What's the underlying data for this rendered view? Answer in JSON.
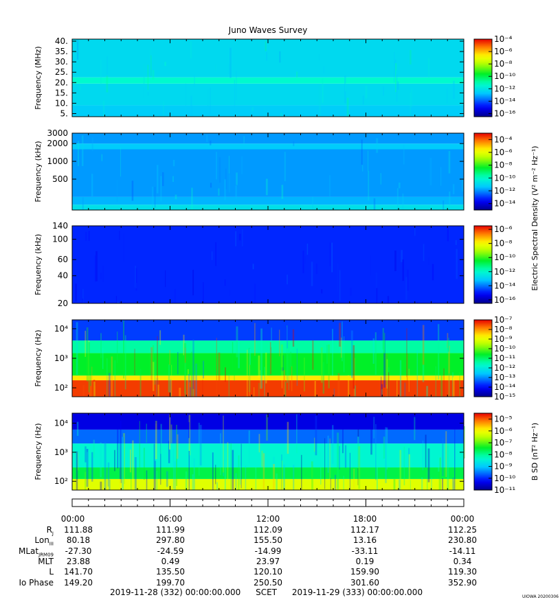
{
  "title": "Juno Waves Survey",
  "version": "UIOWA 20200306",
  "footer": {
    "start": "2019-11-28 (332) 00:00:00.000",
    "mid": "SCET",
    "end": "2019-11-29 (333) 00:00:00.000"
  },
  "shared_colorbar_label": "Electric Spectral Density (V² m⁻² Hz⁻¹)",
  "chart_data": [
    {
      "type": "heatmap",
      "name_of_panel": "mhz",
      "ylabel": "Frequency (MHz)",
      "yscale": "linear",
      "ylim": [
        3.5,
        41
      ],
      "yticks": [
        "5.",
        "10.",
        "15.",
        "20.",
        "25.",
        "30.",
        "35.",
        "40."
      ],
      "ytick_values": [
        5,
        10,
        15,
        20,
        25,
        30,
        35,
        40
      ],
      "colorbar_ticks": [
        "10⁻⁴",
        "10⁻⁶",
        "10⁻⁸",
        "10⁻¹⁰",
        "10⁻¹²",
        "10⁻¹⁴",
        "10⁻¹⁶"
      ],
      "colorbar_exponents": [
        -4,
        -6,
        -8,
        -10,
        -12,
        -14,
        -16
      ],
      "colorbar_range": [
        -16.5,
        -4
      ],
      "colorbar_label": "",
      "bands": [
        {
          "from": 3.5,
          "to": 9,
          "level": -12.6
        },
        {
          "from": 9,
          "to": 19.5,
          "level": -12.3
        },
        {
          "from": 19.5,
          "to": 22.5,
          "level": -11.4
        },
        {
          "from": 22.5,
          "to": 41,
          "level": -12.3
        }
      ]
    },
    {
      "type": "heatmap",
      "name_of_panel": "khz-high",
      "ylabel": "Frequency (kHz)",
      "yscale": "log",
      "ylim": [
        150,
        3000
      ],
      "yticks": [
        "3000",
        "2000",
        "1000",
        "500"
      ],
      "ytick_values": [
        3000,
        2000,
        1000,
        500
      ],
      "colorbar_ticks": [
        "10⁻⁴",
        "10⁻⁶",
        "10⁻⁸",
        "10⁻¹⁰",
        "10⁻¹²",
        "10⁻¹⁴"
      ],
      "colorbar_exponents": [
        -4,
        -6,
        -8,
        -10,
        -12,
        -14
      ],
      "colorbar_range": [
        -15,
        -3
      ],
      "colorbar_label": "",
      "bands": [
        {
          "from": 150,
          "to": 185,
          "level": -10.8
        },
        {
          "from": 185,
          "to": 250,
          "level": -11.6
        },
        {
          "from": 250,
          "to": 1600,
          "level": -11.9
        },
        {
          "from": 1600,
          "to": 2000,
          "level": -11.3
        },
        {
          "from": 2000,
          "to": 3000,
          "level": -11.9
        }
      ]
    },
    {
      "type": "heatmap",
      "name_of_panel": "khz-low",
      "ylabel": "Frequency (kHz)",
      "yscale": "log",
      "ylim": [
        20,
        140
      ],
      "yticks": [
        "140",
        "100",
        "60",
        "40",
        "20"
      ],
      "ytick_values": [
        140,
        100,
        60,
        40,
        20
      ],
      "colorbar_ticks": [
        "10⁻⁶",
        "10⁻⁸",
        "10⁻¹⁰",
        "10⁻¹²",
        "10⁻¹⁴",
        "10⁻¹⁶"
      ],
      "colorbar_exponents": [
        -6,
        -8,
        -10,
        -12,
        -14,
        -16
      ],
      "colorbar_range": [
        -16.5,
        -5.5
      ],
      "colorbar_label": "",
      "bands": [
        {
          "from": 20,
          "to": 140,
          "level": -14.8
        }
      ]
    },
    {
      "type": "heatmap",
      "name_of_panel": "hz-e",
      "ylabel": "Frequency (Hz)",
      "yscale": "log",
      "ylim": [
        50,
        20000
      ],
      "yticks": [
        "10⁴",
        "10³",
        "10²"
      ],
      "ytick_values": [
        10000,
        1000,
        100
      ],
      "colorbar_ticks": [
        "10⁻⁷",
        "10⁻⁸",
        "10⁻⁹",
        "10⁻¹⁰",
        "10⁻¹¹",
        "10⁻¹²",
        "10⁻¹³",
        "10⁻¹⁴",
        "10⁻¹⁵"
      ],
      "colorbar_exponents": [
        -7,
        -8,
        -9,
        -10,
        -11,
        -12,
        -13,
        -14,
        -15
      ],
      "colorbar_range": [
        -15,
        -7
      ],
      "colorbar_label": "",
      "bands": [
        {
          "from": 50,
          "to": 180,
          "level": -7.4
        },
        {
          "from": 180,
          "to": 260,
          "level": -8.6
        },
        {
          "from": 260,
          "to": 1500,
          "level": -10.6
        },
        {
          "from": 1500,
          "to": 4000,
          "level": -11.4
        },
        {
          "from": 4000,
          "to": 20000,
          "level": -13.6
        }
      ]
    },
    {
      "type": "heatmap",
      "name_of_panel": "hz-b",
      "ylabel": "Frequency (Hz)",
      "yscale": "log",
      "ylim": [
        50,
        22000
      ],
      "yticks": [
        "10⁴",
        "10³",
        "10²"
      ],
      "ytick_values": [
        10000,
        1000,
        100
      ],
      "colorbar_ticks": [
        "10⁻⁵",
        "10⁻⁶",
        "10⁻⁷",
        "10⁻⁸",
        "10⁻⁹",
        "10⁻¹⁰",
        "10⁻¹¹"
      ],
      "colorbar_exponents": [
        -5,
        -6,
        -7,
        -8,
        -9,
        -10,
        -11
      ],
      "colorbar_range": [
        -11,
        -4.5
      ],
      "colorbar_label": "B SD (nT² Hz⁻¹)",
      "bands": [
        {
          "from": 50,
          "to": 120,
          "level": -6.2
        },
        {
          "from": 120,
          "to": 300,
          "level": -7.6
        },
        {
          "from": 300,
          "to": 2000,
          "level": -8.4
        },
        {
          "from": 2000,
          "to": 6000,
          "level": -9.6
        },
        {
          "from": 6000,
          "to": 22000,
          "level": -10.4
        }
      ]
    }
  ],
  "time_axis": {
    "labels": [
      "00:00",
      "06:00",
      "12:00",
      "18:00",
      "00:00"
    ]
  },
  "ephemeris": [
    {
      "label": "R",
      "sub": "J",
      "values": [
        "111.88",
        "111.99",
        "112.09",
        "112.17",
        "112.25"
      ]
    },
    {
      "label": "Lon",
      "sub": "III",
      "values": [
        "80.18",
        "297.80",
        "155.50",
        "13.16",
        "230.80"
      ]
    },
    {
      "label": "MLat",
      "sub": "JRM09",
      "values": [
        "-27.30",
        "-24.59",
        "-14.99",
        "-33.11",
        "-14.11"
      ]
    },
    {
      "label": "MLT",
      "sub": "",
      "values": [
        "23.88",
        "0.49",
        "23.97",
        "0.19",
        "0.34"
      ]
    },
    {
      "label": "L",
      "sub": "",
      "values": [
        "141.70",
        "135.50",
        "120.10",
        "159.90",
        "119.30"
      ]
    },
    {
      "label": "Io Phase",
      "sub": "",
      "values": [
        "149.20",
        "199.70",
        "250.50",
        "301.60",
        "352.90"
      ]
    }
  ]
}
